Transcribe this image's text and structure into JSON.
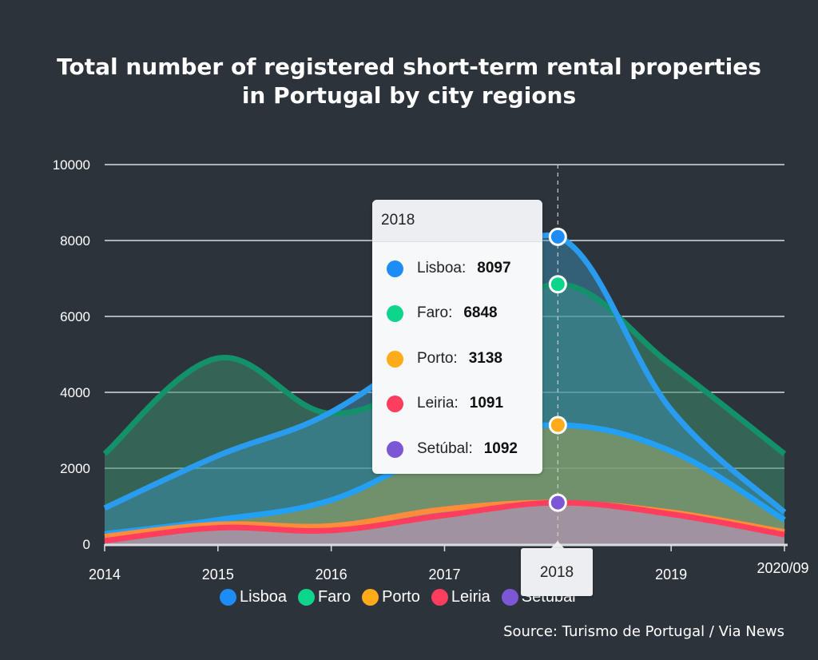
{
  "chart_data": {
    "type": "area",
    "title_lines": [
      "Total number of registered short-term rental properties",
      "in Portugal by city regions"
    ],
    "xlabel": "",
    "ylabel": "",
    "categories": [
      "2014",
      "2015",
      "2016",
      "2017",
      "2018",
      "2019",
      "2020/09"
    ],
    "ylim": [
      0,
      10000
    ],
    "yticks": [
      "0",
      "2000",
      "4000",
      "6000",
      "8000",
      "10000"
    ],
    "grid": true,
    "legend_position": "bottom",
    "series": [
      {
        "name": "Faro",
        "color": "#0dd68c",
        "line_color": "#13916a",
        "fill": "rgba(60,140,110,0.55)",
        "values": [
          2380,
          4900,
          3440,
          4700,
          6848,
          4720,
          2380
        ]
      },
      {
        "name": "Lisboa",
        "color": "#1e8cf5",
        "line_color": "#2a9cf0",
        "fill": "rgba(60,150,190,0.45)",
        "values": [
          950,
          2330,
          3480,
          5600,
          8097,
          3540,
          840
        ]
      },
      {
        "name": "Porto",
        "color": "#ffab1a",
        "line_color": "#22a0f5",
        "fill": "rgba(150,160,90,0.6)",
        "values": [
          270,
          640,
          1160,
          2500,
          3138,
          2450,
          640
        ]
      },
      {
        "name": "Setúbal",
        "color": "#7b57d6",
        "line_color": "#ff8c3a",
        "fill": "rgba(170,120,170,0.55)",
        "values": [
          200,
          520,
          480,
          920,
          1092,
          840,
          320
        ]
      },
      {
        "name": "Leiria",
        "color": "#ff3d5e",
        "line_color": "#ff3d5e",
        "fill": "rgba(175,160,175,0.55)",
        "values": [
          90,
          430,
          360,
          760,
          1091,
          790,
          250
        ]
      }
    ],
    "highlight": {
      "category": "2018",
      "rows": [
        {
          "name": "Lisboa",
          "label": "Lisboa:",
          "value": "8097",
          "color": "#1e8cf5"
        },
        {
          "name": "Faro",
          "label": "Faro:",
          "value": "6848",
          "color": "#0dd68c"
        },
        {
          "name": "Porto",
          "label": "Porto:",
          "value": "3138",
          "color": "#ffab1a"
        },
        {
          "name": "Leiria",
          "label": "Leiria:",
          "value": "1091",
          "color": "#ff3d5e"
        },
        {
          "name": "Setúbal",
          "label": "Setúbal:",
          "value": "1092",
          "color": "#7b57d6"
        }
      ]
    },
    "legend": [
      {
        "label": "Lisboa",
        "color": "#1e8cf5"
      },
      {
        "label": "Faro",
        "color": "#0dd68c"
      },
      {
        "label": "Porto",
        "color": "#ffab1a"
      },
      {
        "label": "Leiria",
        "color": "#ff3d5e"
      },
      {
        "label": "Setúbal",
        "color": "#7b57d6"
      }
    ],
    "source": "Source: Turismo de Portugal / Via News"
  }
}
